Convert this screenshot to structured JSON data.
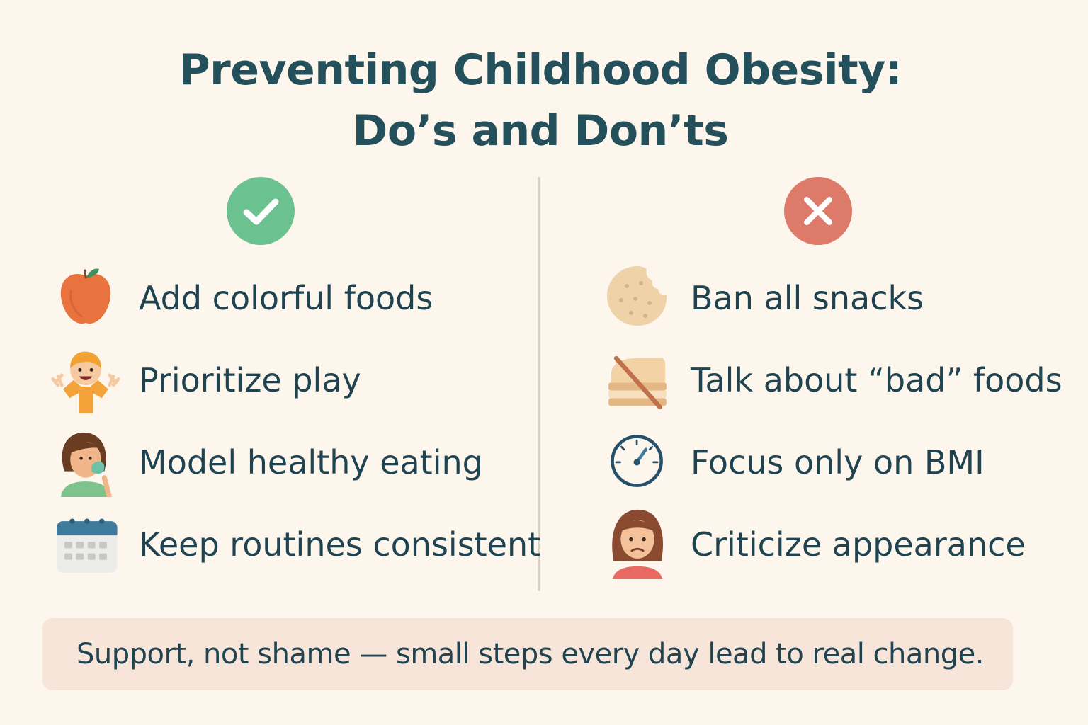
{
  "title": {
    "line1": "Preventing Childhood Obesity:",
    "line2": "Do’s and Don’ts"
  },
  "dos": {
    "badge_icon": "check-icon",
    "color": "#6cc190",
    "items": [
      {
        "label": "Add colorful foods",
        "icon": "apple-icon"
      },
      {
        "label": "Prioritize play",
        "icon": "playing-child-icon"
      },
      {
        "label": "Model healthy eating",
        "icon": "eating-parent-icon"
      },
      {
        "label": "Keep routines consistent",
        "icon": "calendar-icon"
      }
    ]
  },
  "donts": {
    "badge_icon": "x-icon",
    "color": "#de7a6a",
    "items": [
      {
        "label": "Ban all snacks",
        "icon": "cookie-icon"
      },
      {
        "label": "Talk about “bad” foods",
        "icon": "crossed-sandwich-icon"
      },
      {
        "label": "Focus only on BMI",
        "icon": "gauge-icon"
      },
      {
        "label": "Criticize appearance",
        "icon": "sad-child-icon"
      }
    ]
  },
  "footer": {
    "text": "Support, not shame — small steps every day lead to real change."
  }
}
